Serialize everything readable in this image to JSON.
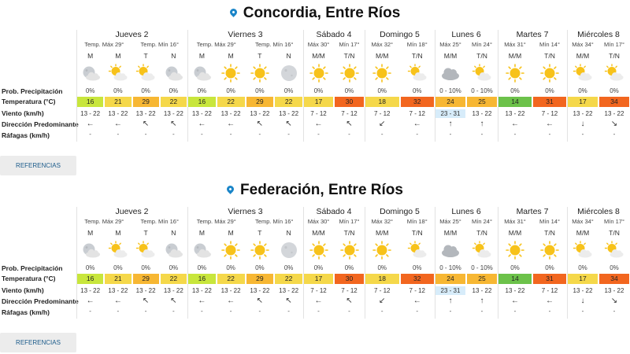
{
  "colors": {
    "accent": "#1a85c8",
    "temp_yellowgreen": "#c8e63c",
    "temp_yellow": "#f5d84a",
    "temp_orange": "#f7b733",
    "temp_red": "#f2661f",
    "temp_green": "#6cc24a",
    "wind_blue": "#d7ecfa"
  },
  "labels": {
    "prob": "Prob. Precipitación",
    "temp": "Temperatura (°C)",
    "wind": "Viento (km/h)",
    "dir": "Dirección Predominante",
    "gust": "Ráfagas (km/h)",
    "button": "REFERENCIAS"
  },
  "cities": [
    {
      "name": "Concordia, Entre Ríos",
      "days": [
        {
          "name": "Jueves 2",
          "tmax": "Temp. Máx 29°",
          "tmin": "Temp. Mín 16°",
          "periods": [
            {
              "label": "M",
              "icon": "moon-cloud-icon",
              "prob": "0%",
              "temp": "16",
              "temp_color": "yellowgreen",
              "wind": "13 - 22",
              "dir": "←",
              "gust": "-"
            },
            {
              "label": "M",
              "icon": "sun-cloud-icon",
              "prob": "0%",
              "temp": "21",
              "temp_color": "yellow",
              "wind": "13 - 22",
              "dir": "←",
              "gust": "-"
            },
            {
              "label": "T",
              "icon": "sun-cloud-icon",
              "prob": "0%",
              "temp": "29",
              "temp_color": "orange",
              "wind": "13 - 22",
              "dir": "↖",
              "gust": "-"
            },
            {
              "label": "N",
              "icon": "moon-cloud-icon",
              "prob": "0%",
              "temp": "22",
              "temp_color": "yellow",
              "wind": "13 - 22",
              "dir": "↖",
              "gust": "-"
            }
          ]
        },
        {
          "name": "Viernes 3",
          "tmax": "Temp. Máx 29°",
          "tmin": "Temp. Mín 16°",
          "periods": [
            {
              "label": "M",
              "icon": "moon-cloud-icon",
              "prob": "0%",
              "temp": "16",
              "temp_color": "yellowgreen",
              "wind": "13 - 22",
              "dir": "←",
              "gust": "-"
            },
            {
              "label": "M",
              "icon": "sun-icon",
              "prob": "0%",
              "temp": "22",
              "temp_color": "yellow",
              "wind": "13 - 22",
              "dir": "←",
              "gust": "-"
            },
            {
              "label": "T",
              "icon": "sun-icon",
              "prob": "0%",
              "temp": "29",
              "temp_color": "orange",
              "wind": "13 - 22",
              "dir": "↖",
              "gust": "-"
            },
            {
              "label": "N",
              "icon": "moon-icon",
              "prob": "0%",
              "temp": "22",
              "temp_color": "yellow",
              "wind": "13 - 22",
              "dir": "↖",
              "gust": "-"
            }
          ]
        },
        {
          "name": "Sábado 4",
          "tmax": "Máx 30°",
          "tmin": "Mín 17°",
          "periods": [
            {
              "label": "M/M",
              "icon": "sun-icon",
              "prob": "0%",
              "temp": "17",
              "temp_color": "yellow",
              "wind": "7 - 12",
              "dir": "←",
              "gust": "-"
            },
            {
              "label": "T/N",
              "icon": "sun-icon",
              "prob": "0%",
              "temp": "30",
              "temp_color": "red",
              "wind": "7 - 12",
              "dir": "↖",
              "gust": "-"
            }
          ]
        },
        {
          "name": "Domingo 5",
          "tmax": "Máx 32°",
          "tmin": "Mín 18°",
          "periods": [
            {
              "label": "M/M",
              "icon": "sun-icon",
              "prob": "0%",
              "temp": "18",
              "temp_color": "yellow",
              "wind": "7 - 12",
              "dir": "↙",
              "gust": "-"
            },
            {
              "label": "T/N",
              "icon": "sun-cloud-icon",
              "prob": "0%",
              "temp": "32",
              "temp_color": "red",
              "wind": "7 - 12",
              "dir": "←",
              "gust": "-"
            }
          ]
        },
        {
          "name": "Lunes 6",
          "tmax": "Máx 25°",
          "tmin": "Mín 24°",
          "periods": [
            {
              "label": "M/M",
              "icon": "cloud-icon",
              "prob": "0 - 10%",
              "temp": "24",
              "temp_color": "orange",
              "wind": "23 - 31",
              "wind_hl": true,
              "dir": "↑",
              "gust": "-"
            },
            {
              "label": "T/N",
              "icon": "sun-cloud-icon",
              "prob": "0 - 10%",
              "temp": "25",
              "temp_color": "orange",
              "wind": "13 - 22",
              "dir": "↑",
              "gust": "-"
            }
          ]
        },
        {
          "name": "Martes 7",
          "tmax": "Máx 31°",
          "tmin": "Mín 14°",
          "periods": [
            {
              "label": "M/M",
              "icon": "sun-icon",
              "prob": "0%",
              "temp": "14",
              "temp_color": "green",
              "wind": "13 - 22",
              "dir": "←",
              "gust": "-"
            },
            {
              "label": "T/N",
              "icon": "sun-icon",
              "prob": "0%",
              "temp": "31",
              "temp_color": "red",
              "wind": "7 - 12",
              "dir": "←",
              "gust": "-"
            }
          ]
        },
        {
          "name": "Miércoles 8",
          "tmax": "Máx 34°",
          "tmin": "Mín 17°",
          "periods": [
            {
              "label": "M/M",
              "icon": "sun-cloud-icon",
              "prob": "0%",
              "temp": "17",
              "temp_color": "yellow",
              "wind": "13 - 22",
              "dir": "↓",
              "gust": "-"
            },
            {
              "label": "T/N",
              "icon": "sun-cloud-icon",
              "prob": "0%",
              "temp": "34",
              "temp_color": "red",
              "wind": "13 - 22",
              "dir": "↘",
              "gust": "-"
            }
          ]
        }
      ]
    },
    {
      "name": "Federación, Entre Ríos",
      "days": [
        {
          "name": "Jueves 2",
          "tmax": "Temp. Máx 29°",
          "tmin": "Temp. Mín 16°",
          "periods": [
            {
              "label": "M",
              "icon": "moon-cloud-icon",
              "prob": "0%",
              "temp": "16",
              "temp_color": "yellowgreen",
              "wind": "13 - 22",
              "dir": "←",
              "gust": "-"
            },
            {
              "label": "M",
              "icon": "sun-cloud-icon",
              "prob": "0%",
              "temp": "21",
              "temp_color": "yellow",
              "wind": "13 - 22",
              "dir": "←",
              "gust": "-"
            },
            {
              "label": "T",
              "icon": "sun-cloud-icon",
              "prob": "0%",
              "temp": "29",
              "temp_color": "orange",
              "wind": "13 - 22",
              "dir": "↖",
              "gust": "-"
            },
            {
              "label": "N",
              "icon": "moon-cloud-icon",
              "prob": "0%",
              "temp": "22",
              "temp_color": "yellow",
              "wind": "13 - 22",
              "dir": "↖",
              "gust": "-"
            }
          ]
        },
        {
          "name": "Viernes 3",
          "tmax": "Temp. Máx 29°",
          "tmin": "Temp. Mín 16°",
          "periods": [
            {
              "label": "M",
              "icon": "moon-cloud-icon",
              "prob": "0%",
              "temp": "16",
              "temp_color": "yellowgreen",
              "wind": "13 - 22",
              "dir": "←",
              "gust": "-"
            },
            {
              "label": "M",
              "icon": "sun-icon",
              "prob": "0%",
              "temp": "22",
              "temp_color": "yellow",
              "wind": "13 - 22",
              "dir": "←",
              "gust": "-"
            },
            {
              "label": "T",
              "icon": "sun-icon",
              "prob": "0%",
              "temp": "29",
              "temp_color": "orange",
              "wind": "13 - 22",
              "dir": "↖",
              "gust": "-"
            },
            {
              "label": "N",
              "icon": "moon-icon",
              "prob": "0%",
              "temp": "22",
              "temp_color": "yellow",
              "wind": "13 - 22",
              "dir": "↖",
              "gust": "-"
            }
          ]
        },
        {
          "name": "Sábado 4",
          "tmax": "Máx 30°",
          "tmin": "Mín 17°",
          "periods": [
            {
              "label": "M/M",
              "icon": "sun-icon",
              "prob": "0%",
              "temp": "17",
              "temp_color": "yellow",
              "wind": "7 - 12",
              "dir": "←",
              "gust": "-"
            },
            {
              "label": "T/N",
              "icon": "sun-icon",
              "prob": "0%",
              "temp": "30",
              "temp_color": "red",
              "wind": "7 - 12",
              "dir": "↖",
              "gust": "-"
            }
          ]
        },
        {
          "name": "Domingo 5",
          "tmax": "Máx 32°",
          "tmin": "Mín 18°",
          "periods": [
            {
              "label": "M/M",
              "icon": "sun-icon",
              "prob": "0%",
              "temp": "18",
              "temp_color": "yellow",
              "wind": "7 - 12",
              "dir": "↙",
              "gust": "-"
            },
            {
              "label": "T/N",
              "icon": "sun-cloud-icon",
              "prob": "0%",
              "temp": "32",
              "temp_color": "red",
              "wind": "7 - 12",
              "dir": "←",
              "gust": "-"
            }
          ]
        },
        {
          "name": "Lunes 6",
          "tmax": "Máx 25°",
          "tmin": "Mín 24°",
          "periods": [
            {
              "label": "M/M",
              "icon": "cloud-icon",
              "prob": "0 - 10%",
              "temp": "24",
              "temp_color": "orange",
              "wind": "23 - 31",
              "wind_hl": true,
              "dir": "↑",
              "gust": "-"
            },
            {
              "label": "T/N",
              "icon": "sun-cloud-icon",
              "prob": "0 - 10%",
              "temp": "25",
              "temp_color": "orange",
              "wind": "13 - 22",
              "dir": "↑",
              "gust": "-"
            }
          ]
        },
        {
          "name": "Martes 7",
          "tmax": "Máx 31°",
          "tmin": "Mín 14°",
          "periods": [
            {
              "label": "M/M",
              "icon": "sun-icon",
              "prob": "0%",
              "temp": "14",
              "temp_color": "green",
              "wind": "13 - 22",
              "dir": "←",
              "gust": "-"
            },
            {
              "label": "T/N",
              "icon": "sun-icon",
              "prob": "0%",
              "temp": "31",
              "temp_color": "red",
              "wind": "7 - 12",
              "dir": "←",
              "gust": "-"
            }
          ]
        },
        {
          "name": "Miércoles 8",
          "tmax": "Máx 34°",
          "tmin": "Mín 17°",
          "periods": [
            {
              "label": "M/M",
              "icon": "sun-cloud-icon",
              "prob": "0%",
              "temp": "17",
              "temp_color": "yellow",
              "wind": "13 - 22",
              "dir": "↓",
              "gust": "-"
            },
            {
              "label": "T/N",
              "icon": "sun-cloud-icon",
              "prob": "0%",
              "temp": "34",
              "temp_color": "red",
              "wind": "13 - 22",
              "dir": "↘",
              "gust": "-"
            }
          ]
        }
      ]
    }
  ]
}
